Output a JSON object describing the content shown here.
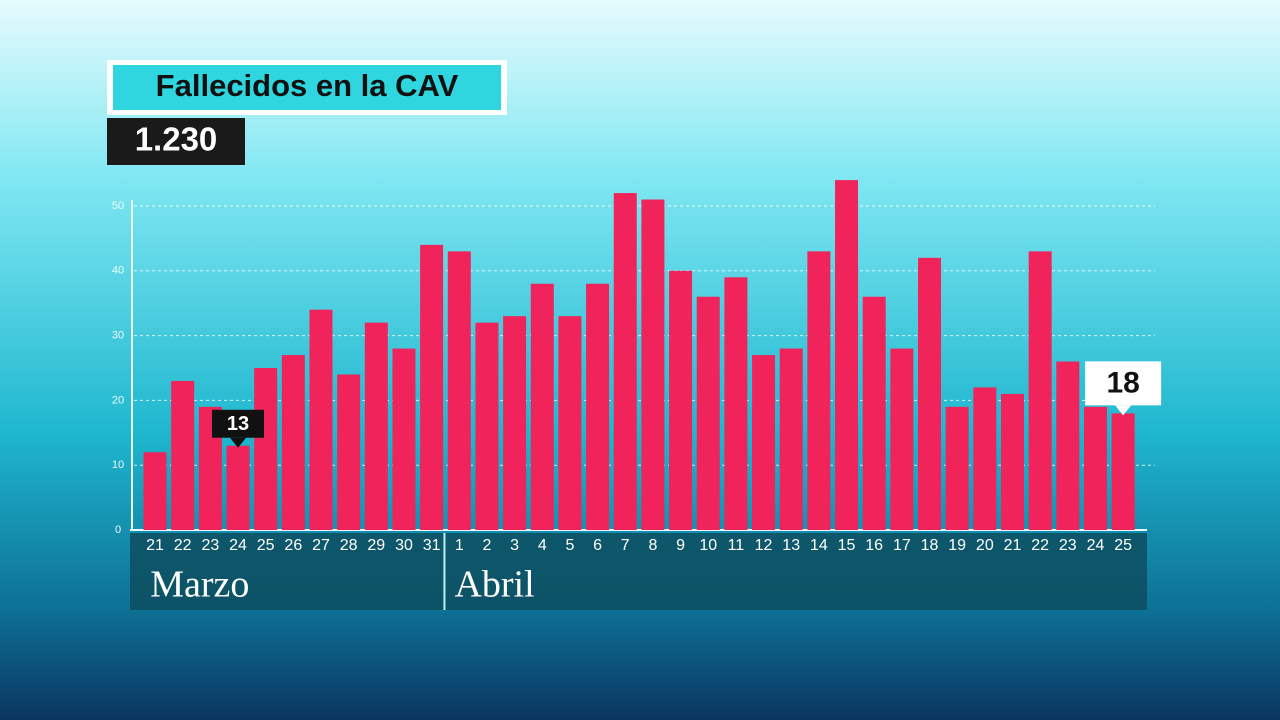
{
  "chart_data": {
    "type": "bar",
    "title": "Fallecidos en la CAV",
    "subtitle": "1.230",
    "color": "#f0245a",
    "ylim": [
      0,
      50
    ],
    "yticks": [
      0,
      10,
      20,
      30,
      40,
      50
    ],
    "grid": true,
    "groups": [
      {
        "name": "Marzo",
        "categories": [
          "21",
          "22",
          "23",
          "24",
          "25",
          "26",
          "27",
          "28",
          "29",
          "30",
          "31"
        ],
        "values": [
          12,
          23,
          19,
          13,
          25,
          27,
          34,
          24,
          32,
          28,
          44
        ],
        "value_labels": [
          null,
          null,
          null,
          "13",
          null,
          null,
          null,
          null,
          null,
          null,
          null
        ]
      },
      {
        "name": "Abril",
        "categories": [
          "1",
          "2",
          "3",
          "4",
          "5",
          "6",
          "7",
          "8",
          "9",
          "10",
          "11",
          "12",
          "13",
          "14",
          "15",
          "16",
          "17",
          "18",
          "19",
          "20",
          "21",
          "22",
          "23",
          "24",
          "25"
        ],
        "values": [
          43,
          32,
          33,
          38,
          33,
          38,
          52,
          51,
          40,
          36,
          39,
          27,
          28,
          43,
          54,
          36,
          28,
          42,
          19,
          22,
          21,
          43,
          26,
          19,
          18
        ],
        "value_labels": [
          null,
          null,
          null,
          null,
          null,
          null,
          null,
          null,
          null,
          null,
          null,
          null,
          null,
          null,
          null,
          null,
          null,
          null,
          null,
          null,
          null,
          null,
          null,
          null,
          "18"
        ]
      }
    ]
  }
}
